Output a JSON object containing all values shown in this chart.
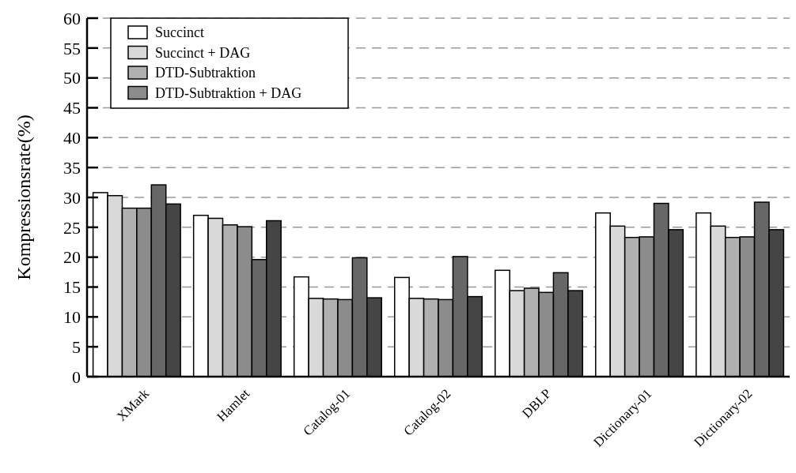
{
  "chart_data": {
    "type": "bar",
    "ylabel": "Kompressionsrate(%)",
    "categories": [
      "XMark",
      "Hamlet",
      "Catalog-01",
      "Catalog-02",
      "DBLP",
      "Dictionary-01",
      "Dictionary-02"
    ],
    "series": [
      {
        "name": "Succinct",
        "color": "#ffffff",
        "values": [
          30.8,
          27.0,
          16.7,
          16.6,
          17.8,
          27.4,
          27.4
        ]
      },
      {
        "name": "Succinct + DAG",
        "color": "#d9d9d9",
        "values": [
          30.3,
          26.5,
          13.1,
          13.1,
          14.4,
          25.2,
          25.2
        ]
      },
      {
        "name": "DTD-Subtraktion",
        "color": "#b0b0b0",
        "values": [
          28.2,
          25.4,
          13.0,
          13.0,
          14.8,
          23.3,
          23.3
        ]
      },
      {
        "name": "DTD-Subtraktion + DAG",
        "color": "#8c8c8c",
        "values": [
          28.2,
          25.1,
          12.9,
          12.9,
          14.1,
          23.4,
          23.4
        ]
      },
      {
        "color": "#676767",
        "values": [
          32.1,
          19.6,
          19.9,
          20.1,
          17.4,
          29.0,
          29.2
        ]
      },
      {
        "color": "#454545",
        "values": [
          28.9,
          26.1,
          13.2,
          13.4,
          14.4,
          24.6,
          24.6
        ]
      }
    ],
    "ylim": [
      0,
      60
    ],
    "yticks": [
      0,
      5,
      10,
      15,
      20,
      25,
      30,
      35,
      40,
      45,
      50,
      55,
      60
    ],
    "grid": "y",
    "legend": "top left"
  }
}
